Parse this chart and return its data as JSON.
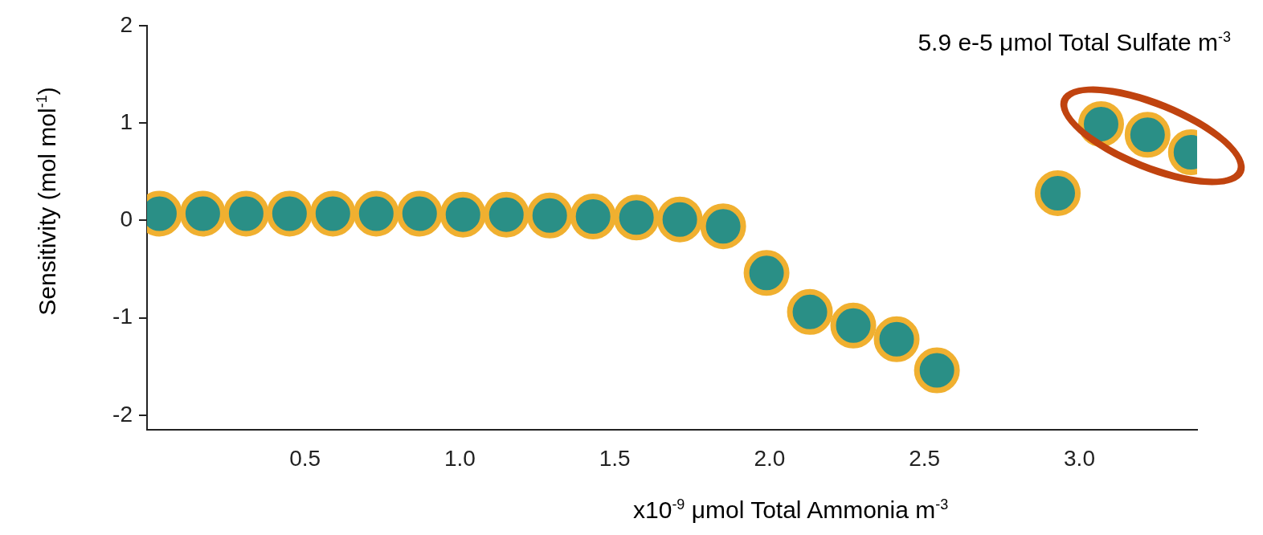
{
  "chart_data": {
    "type": "scatter",
    "xlabel": "x10$^{-9}$ μmol Total Ammonia m$^{-3}$",
    "ylabel": "Sensitivity (mol mol$^{-1}$)",
    "annotations": [
      "5.9 e-5 μmol Total Sulfate m$^{-3}$"
    ],
    "x": [
      0.03,
      0.17,
      0.31,
      0.45,
      0.59,
      0.73,
      0.87,
      1.01,
      1.15,
      1.29,
      1.43,
      1.57,
      1.71,
      1.85,
      1.99,
      2.13,
      2.27,
      2.41,
      2.54,
      2.93,
      3.07,
      3.22,
      3.36
    ],
    "series": [
      {
        "color": "#f0b030",
        "values": [
          0.07,
          0.07,
          0.07,
          0.07,
          0.07,
          0.07,
          0.07,
          0.06,
          0.06,
          0.05,
          0.04,
          0.03,
          0.01,
          -0.06,
          -0.54,
          -0.94,
          -1.08,
          -1.22,
          -1.54,
          0.28,
          0.99,
          0.88,
          0.7
        ]
      }
    ],
    "xlim": [
      -0.01,
      3.38
    ],
    "ylim": [
      -2.15,
      2
    ],
    "xticks": [
      {
        "value": 0.5,
        "label": "0.5"
      },
      {
        "value": 1,
        "label": "1.0"
      },
      {
        "value": 1.5,
        "label": "1.5"
      },
      {
        "value": 2,
        "label": "2.0"
      },
      {
        "value": 2.5,
        "label": "2.5"
      },
      {
        "value": 3,
        "label": "3.0"
      }
    ],
    "yticks": [
      -2,
      -1,
      0,
      1,
      2
    ],
    "grid": false,
    "legend": false,
    "marker": "circle"
  }
}
